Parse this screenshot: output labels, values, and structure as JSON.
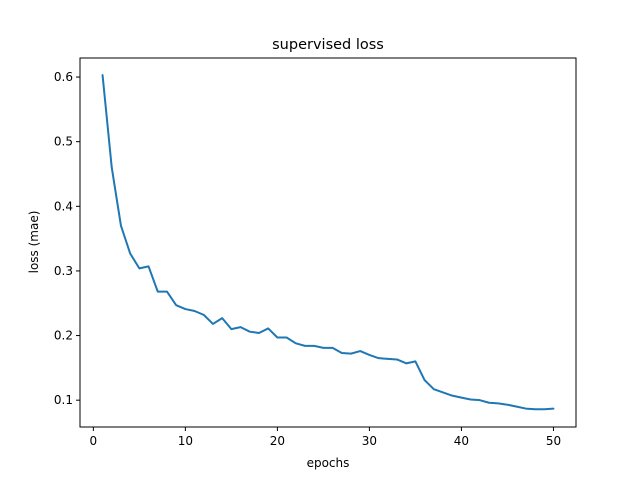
{
  "chart_data": {
    "type": "line",
    "title": "supervised loss",
    "xlabel": "epochs",
    "ylabel": "loss (mae)",
    "xlim": [
      -1.45,
      52.45
    ],
    "ylim": [
      0.0585,
      0.6295
    ],
    "xticks": [
      0,
      10,
      20,
      30,
      40,
      50
    ],
    "yticks": [
      0.1,
      0.2,
      0.3,
      0.4,
      0.5,
      0.6
    ],
    "xtick_labels": [
      "0",
      "10",
      "20",
      "30",
      "40",
      "50"
    ],
    "ytick_labels": [
      "0.1",
      "0.2",
      "0.3",
      "0.4",
      "0.5",
      "0.6"
    ],
    "grid": false,
    "series": [
      {
        "color": "#1f77b4",
        "x": [
          1,
          2,
          3,
          4,
          5,
          6,
          7,
          8,
          9,
          10,
          11,
          12,
          13,
          14,
          15,
          16,
          17,
          18,
          19,
          20,
          21,
          22,
          23,
          24,
          25,
          26,
          27,
          28,
          29,
          30,
          31,
          32,
          33,
          34,
          35,
          36,
          37,
          38,
          39,
          40,
          41,
          42,
          43,
          44,
          45,
          46,
          47,
          48,
          49,
          50
        ],
        "y": [
          0.603,
          0.46,
          0.37,
          0.327,
          0.304,
          0.307,
          0.268,
          0.268,
          0.247,
          0.241,
          0.238,
          0.232,
          0.218,
          0.227,
          0.21,
          0.213,
          0.206,
          0.204,
          0.211,
          0.197,
          0.197,
          0.188,
          0.184,
          0.184,
          0.181,
          0.181,
          0.173,
          0.172,
          0.176,
          0.17,
          0.165,
          0.164,
          0.163,
          0.157,
          0.16,
          0.131,
          0.117,
          0.112,
          0.107,
          0.104,
          0.101,
          0.1,
          0.096,
          0.095,
          0.093,
          0.09,
          0.087,
          0.086,
          0.086,
          0.087
        ]
      }
    ]
  }
}
